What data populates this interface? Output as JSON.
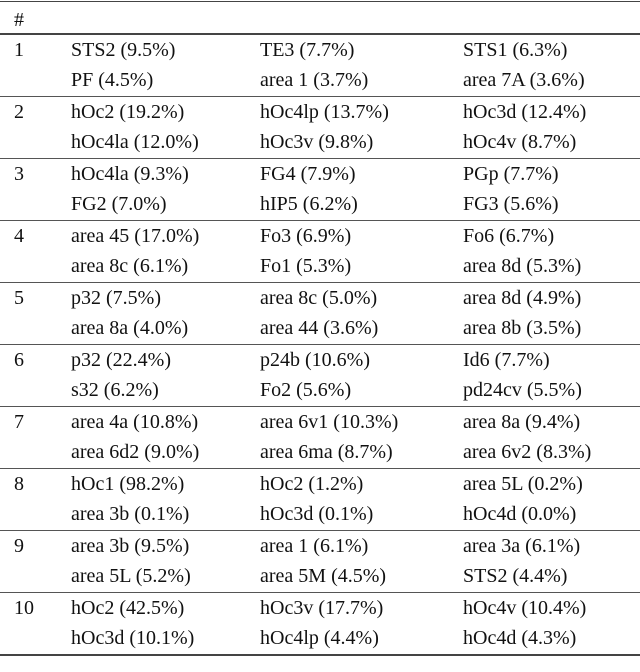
{
  "table": {
    "header": "#",
    "rows": [
      {
        "id": "1",
        "entries": [
          "STS2 (9.5%)",
          "TE3 (7.7%)",
          "STS1 (6.3%)",
          "PF (4.5%)",
          "area 1 (3.7%)",
          "area 7A (3.6%)"
        ]
      },
      {
        "id": "2",
        "entries": [
          "hOc2 (19.2%)",
          "hOc4lp (13.7%)",
          "hOc3d (12.4%)",
          "hOc4la (12.0%)",
          "hOc3v (9.8%)",
          "hOc4v (8.7%)"
        ]
      },
      {
        "id": "3",
        "entries": [
          "hOc4la (9.3%)",
          "FG4 (7.9%)",
          "PGp (7.7%)",
          "FG2 (7.0%)",
          "hIP5 (6.2%)",
          "FG3 (5.6%)"
        ]
      },
      {
        "id": "4",
        "entries": [
          "area 45 (17.0%)",
          "Fo3 (6.9%)",
          "Fo6 (6.7%)",
          "area 8c (6.1%)",
          "Fo1 (5.3%)",
          "area 8d (5.3%)"
        ]
      },
      {
        "id": "5",
        "entries": [
          "p32 (7.5%)",
          "area 8c (5.0%)",
          "area 8d (4.9%)",
          "area 8a (4.0%)",
          "area 44 (3.6%)",
          "area 8b (3.5%)"
        ]
      },
      {
        "id": "6",
        "entries": [
          "p32 (22.4%)",
          "p24b (10.6%)",
          "Id6 (7.7%)",
          "s32 (6.2%)",
          "Fo2 (5.6%)",
          "pd24cv (5.5%)"
        ]
      },
      {
        "id": "7",
        "entries": [
          "area 4a (10.8%)",
          "area 6v1 (10.3%)",
          "area 8a (9.4%)",
          "area 6d2 (9.0%)",
          "area 6ma (8.7%)",
          "area 6v2 (8.3%)"
        ]
      },
      {
        "id": "8",
        "entries": [
          "hOc1 (98.2%)",
          "hOc2 (1.2%)",
          "area 5L (0.2%)",
          "area 3b (0.1%)",
          "hOc3d (0.1%)",
          "hOc4d (0.0%)"
        ]
      },
      {
        "id": "9",
        "entries": [
          "area 3b (9.5%)",
          "area 1 (6.1%)",
          "area 3a (6.1%)",
          "area 5L (5.2%)",
          "area 5M (4.5%)",
          "STS2 (4.4%)"
        ]
      },
      {
        "id": "10",
        "entries": [
          "hOc2 (42.5%)",
          "hOc3v (17.7%)",
          "hOc4v (10.4%)",
          "hOc3d (10.1%)",
          "hOc4lp (4.4%)",
          "hOc4d (4.3%)"
        ]
      }
    ]
  }
}
